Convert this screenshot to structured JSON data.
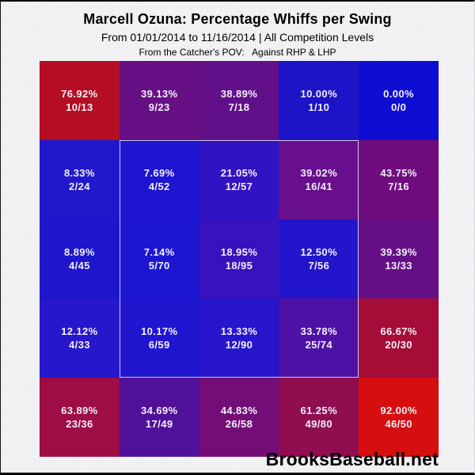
{
  "header": {
    "title": "Marcell Ozuna: Percentage Whiffs per Swing",
    "subtitle": "From 01/01/2014 to 11/16/2014 | All Competition Levels",
    "pov_line": "From the Catcher's POV:   Against RHP & LHP"
  },
  "footer": {
    "brand": "BrooksBaseball.net"
  },
  "chart_data": {
    "type": "heatmap",
    "title": "Marcell Ozuna: Percentage Whiffs per Swing",
    "date_from": "01/01/2014",
    "date_to": "11/16/2014",
    "competition": "All Competition Levels",
    "perspective": "From the Catcher's POV: Against RHP & LHP",
    "rows": 5,
    "cols": 5,
    "value_unit": "percent whiffs per swing",
    "strike_zone": {
      "col_start": 2,
      "col_end": 4,
      "row_start": 2,
      "row_end": 4,
      "outline": "#e4e4f0"
    },
    "cells": [
      [
        {
          "pct": "76.92%",
          "frac": "10/13",
          "value": 76.92,
          "color": "#b50e22"
        },
        {
          "pct": "39.13%",
          "frac": "9/23",
          "value": 39.13,
          "color": "#670f85"
        },
        {
          "pct": "38.89%",
          "frac": "7/18",
          "value": 38.89,
          "color": "#62108a"
        },
        {
          "pct": "10.00%",
          "frac": "1/10",
          "value": 10.0,
          "color": "#1d13c7"
        },
        {
          "pct": "0.00%",
          "frac": "0/0",
          "value": 0.0,
          "color": "#0e0ed3"
        }
      ],
      [
        {
          "pct": "8.33%",
          "frac": "2/24",
          "value": 8.33,
          "color": "#2018ca"
        },
        {
          "pct": "7.69%",
          "frac": "4/52",
          "value": 7.69,
          "color": "#1e15d0"
        },
        {
          "pct": "21.05%",
          "frac": "12/57",
          "value": 21.05,
          "color": "#3213c3"
        },
        {
          "pct": "39.02%",
          "frac": "16/41",
          "value": 39.02,
          "color": "#680f8d"
        },
        {
          "pct": "43.75%",
          "frac": "7/16",
          "value": 43.75,
          "color": "#6f0c7e"
        }
      ],
      [
        {
          "pct": "8.89%",
          "frac": "4/45",
          "value": 8.89,
          "color": "#1e16cc"
        },
        {
          "pct": "7.14%",
          "frac": "5/70",
          "value": 7.14,
          "color": "#1d16d1"
        },
        {
          "pct": "18.95%",
          "frac": "18/95",
          "value": 18.95,
          "color": "#3912bf"
        },
        {
          "pct": "12.50%",
          "frac": "7/56",
          "value": 12.5,
          "color": "#2315cb"
        },
        {
          "pct": "39.39%",
          "frac": "13/33",
          "value": 39.39,
          "color": "#650f87"
        }
      ],
      [
        {
          "pct": "12.12%",
          "frac": "4/33",
          "value": 12.12,
          "color": "#2617ca"
        },
        {
          "pct": "10.17%",
          "frac": "6/59",
          "value": 10.17,
          "color": "#2016cf"
        },
        {
          "pct": "13.33%",
          "frac": "12/90",
          "value": 13.33,
          "color": "#2716cc"
        },
        {
          "pct": "33.78%",
          "frac": "25/74",
          "value": 33.78,
          "color": "#4e11a5"
        },
        {
          "pct": "66.67%",
          "frac": "20/30",
          "value": 66.67,
          "color": "#a50c38"
        }
      ],
      [
        {
          "pct": "63.89%",
          "frac": "23/36",
          "value": 63.89,
          "color": "#9e0d43"
        },
        {
          "pct": "34.69%",
          "frac": "17/49",
          "value": 34.69,
          "color": "#511099"
        },
        {
          "pct": "44.83%",
          "frac": "26/58",
          "value": 44.83,
          "color": "#730e78"
        },
        {
          "pct": "61.25%",
          "frac": "49/80",
          "value": 61.25,
          "color": "#900d50"
        },
        {
          "pct": "92.00%",
          "frac": "46/50",
          "value": 92.0,
          "color": "#d60e0f"
        }
      ]
    ]
  }
}
